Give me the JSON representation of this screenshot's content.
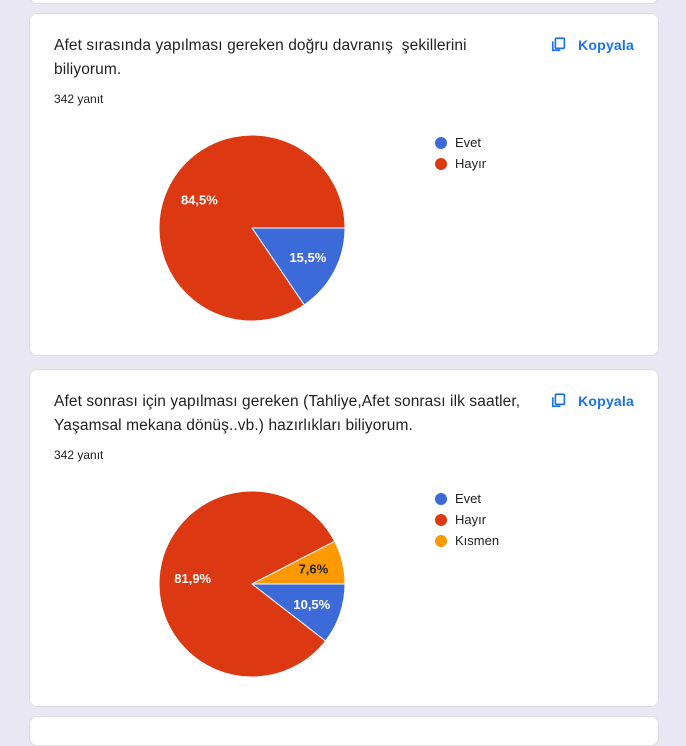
{
  "page": {
    "background_color": "#eae7f5",
    "accent_blue": "#1a73e8",
    "card_border_color": "#dadce0",
    "title_text_color": "#202124"
  },
  "cards": [
    {
      "title": "Afet sırasında yapılması gereken doğru davranış  şekillerini biliyorum.",
      "response_count": "342 yanıt",
      "copy_button": "Kopyala"
    },
    {
      "title": "Afet sonrası için yapılması gereken (Tahliye,Afet sonrası ilk saatler, Yaşamsal mekana dönüş..vb.) hazırlıkları biliyorum.",
      "response_count": "342 yanıt",
      "copy_button": "Kopyala"
    }
  ],
  "chart_data": [
    {
      "type": "pie",
      "title": "Afet sırasında yapılması gereken doğru davranış şekillerini biliyorum.",
      "total_responses_text": "342 yanıt",
      "categories": [
        "Evet",
        "Hayır"
      ],
      "values": [
        15.5,
        84.5
      ],
      "slice_labels": [
        "15,5%",
        "84,5%"
      ],
      "colors": [
        "#3c6bd9",
        "#dc3912"
      ],
      "label_colors": [
        "#ffffff",
        "#ffffff"
      ],
      "legend_position": "right",
      "start_angle_deg": 0,
      "direction": "clockwise"
    },
    {
      "type": "pie",
      "title": "Afet sonrası için yapılması gereken (Tahliye,Afet sonrası ilk saatler, Yaşamsal mekana dönüş..vb.) hazırlıkları biliyorum.",
      "total_responses_text": "342 yanıt",
      "categories": [
        "Evet",
        "Hayır",
        "Kısmen"
      ],
      "values": [
        10.5,
        81.9,
        7.6
      ],
      "slice_labels": [
        "10,5%",
        "81,9%",
        "7,6%"
      ],
      "colors": [
        "#3c6bd9",
        "#dc3912",
        "#ff9900"
      ],
      "label_colors": [
        "#ffffff",
        "#ffffff",
        "#212121"
      ],
      "legend_position": "right",
      "start_angle_deg": 0,
      "direction": "clockwise"
    }
  ]
}
